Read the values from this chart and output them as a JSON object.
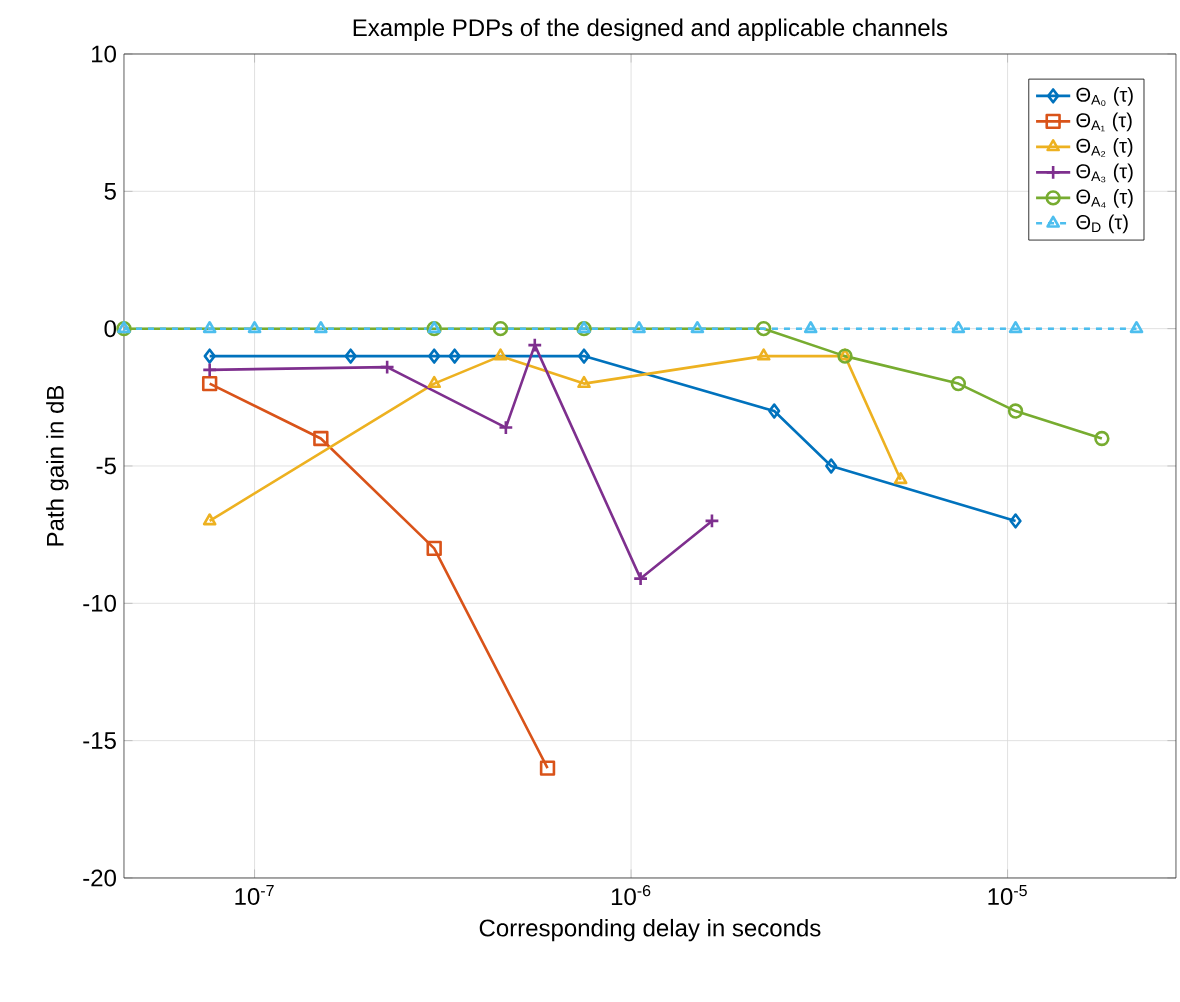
{
  "chart_data": {
    "type": "line",
    "title": "Example PDPs of the designed and applicable channels",
    "xlabel": "Corresponding delay in seconds",
    "ylabel": "Path gain in dB",
    "log": "x",
    "grid": true,
    "legend": "top right",
    "xlim": [
      4.5e-08,
      2.8e-05
    ],
    "ylim": [
      -20,
      10
    ],
    "xticks": [
      {
        "value": 1e-07,
        "label": "10$^{-7}$"
      },
      {
        "value": 1e-06,
        "label": "10$^{-6}$"
      },
      {
        "value": 1e-05,
        "label": "10$^{-5}$"
      }
    ],
    "yticks": [
      -20,
      -15,
      -10,
      -5,
      0,
      5,
      10
    ],
    "series": [
      {
        "name": "Θ$_{A₀}$ (τ)",
        "color": "#0072bd",
        "marker": "diamond",
        "x": [
          7.6e-08,
          1.8e-07,
          3e-07,
          3.4e-07,
          7.5e-07,
          2.4e-06,
          3.4e-06,
          1.05e-05
        ],
        "values": [
          -1,
          -1,
          -1,
          -1,
          -1,
          -3,
          -5,
          -7
        ]
      },
      {
        "name": "Θ$_{A₁}$ (τ)",
        "color": "#d95319",
        "marker": "square",
        "x": [
          7.6e-08,
          1.5e-07,
          3e-07,
          6e-07
        ],
        "values": [
          -2,
          -4,
          -8,
          -16
        ]
      },
      {
        "name": "Θ$_{A₂}$ (τ)",
        "color": "#edb120",
        "marker": "triangle",
        "x": [
          7.6e-08,
          3e-07,
          4.5e-07,
          7.5e-07,
          2.25e-06,
          3.7e-06,
          5.2e-06
        ],
        "values": [
          -7,
          -2,
          -1,
          -2,
          -1,
          -1,
          -5.5
        ]
      },
      {
        "name": "Θ$_{A₃}$ (τ)",
        "color": "#7e2f8e",
        "marker": "cross",
        "x": [
          7.6e-08,
          2.25e-07,
          4.65e-07,
          5.55e-07,
          1.06e-06,
          1.64e-06
        ],
        "values": [
          -1.5,
          -1.4,
          -3.6,
          -0.6,
          -9.1,
          -7
        ]
      },
      {
        "name": "Θ$_{A₄}$ (τ)",
        "color": "#77ac30",
        "marker": "circle",
        "x": [
          4.5e-08,
          3e-07,
          4.5e-07,
          7.5e-07,
          2.25e-06,
          3.7e-06,
          7.4e-06,
          1.05e-05,
          1.78e-05
        ],
        "values": [
          0,
          0,
          0,
          0,
          0,
          -1,
          -2,
          -3,
          -4
        ]
      },
      {
        "name": "Θ$_{D}$ (τ)",
        "color": "#4dbeee",
        "marker": "triangle",
        "line_style": "dashed",
        "x": [
          4.5e-08,
          7.6e-08,
          1e-07,
          1.5e-07,
          3e-07,
          7.5e-07,
          1.05e-06,
          1.5e-06,
          3e-06,
          7.4e-06,
          1.05e-05,
          2.2e-05
        ],
        "values": [
          0,
          0,
          0,
          0,
          0,
          0,
          0,
          0,
          0,
          0,
          0,
          0
        ]
      }
    ]
  }
}
